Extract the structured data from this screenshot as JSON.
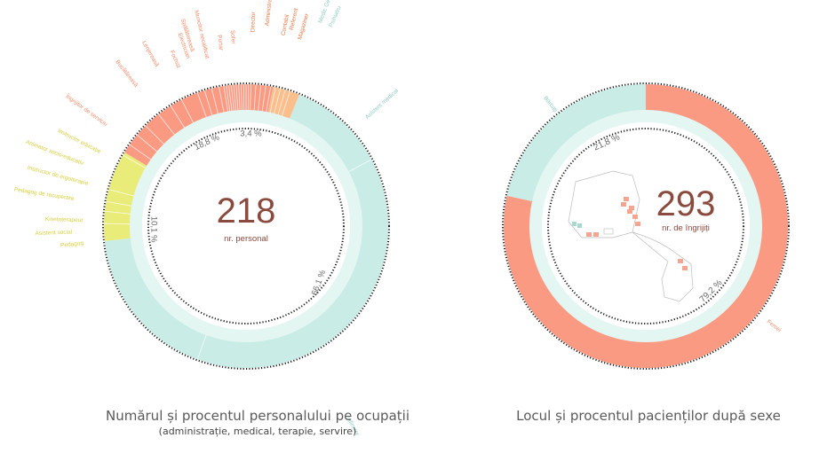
{
  "colors": {
    "admin": "#fb9a83",
    "admin_light": "#fbbf8e",
    "medical": "#c9ece6",
    "therapy": "#eaec7a",
    "therapy_text": "#d9cf3f",
    "admin_text": "#f08c6c",
    "number": "#8a4a3e",
    "dots": "#1a1a1a"
  },
  "chart_data": [
    {
      "type": "pie",
      "title": "Numărul și procentul personalului pe ocupații",
      "subtitle": "(administrație, medical, terapie, servire)",
      "center_value": "218",
      "center_label": "nr. personal",
      "groups": [
        {
          "name": "medical",
          "percent_label": "66,1 %",
          "value": 66.1
        },
        {
          "name": "therapy",
          "percent_label": "10,1 %",
          "value": 10.1
        },
        {
          "name": "servire",
          "percent_label": "18,8 %",
          "value": 18.8
        },
        {
          "name": "administrație",
          "percent_label": "3,4 %",
          "value": 3.4
        }
      ],
      "categories": [
        "Asistent medical",
        "Infirmier",
        "Pedagog",
        "Asistent social",
        "Kinetoterapeut",
        "Pedagog de recuperare",
        "Instructor de ergoterapie",
        "Animator socio-educativ",
        "Instructor educație",
        "Îngrijitor de serviciu",
        "Bucătăreasă",
        "Lenjereasă",
        "Fochist",
        "Electrician",
        "Spălătoreasă",
        "Muncitor necalificat",
        "Portar",
        "Șofer",
        "Director",
        "Administrator",
        "Contabil",
        "Referent",
        "Magaziner",
        "Medic Generalist",
        "Psihiatru"
      ],
      "labels": {
        "medical": [
          "Asistent medical",
          "Infirmier",
          "Medic Generalist",
          "Psihiatru"
        ],
        "therapy": [
          "Instructor educație",
          "Animator socio-educativ",
          "Instructor de ergoterapie",
          "Pedagog de recuperare",
          "Kinetoterapeut",
          "Asistent social",
          "Pedagog"
        ],
        "servire": [
          "Îngrijitor de serviciu",
          "Bucătăreasă",
          "Lenjereasă",
          "Fochist",
          "Electrician",
          "Spălătoreasă",
          "Muncitor necalificat",
          "Portar",
          "Șofer"
        ],
        "administrație": [
          "Director",
          "Administrator",
          "Contabil",
          "Referent",
          "Magaziner"
        ]
      }
    },
    {
      "type": "pie",
      "title": "Locul și procentul pacienților după sexe",
      "center_value": "293",
      "center_label": "nr. de îngrijiți",
      "categories": [
        "Bărbați",
        "Femei"
      ],
      "values": [
        21.8,
        79.2
      ],
      "percent_labels": [
        "21,8 %",
        "79,2 %"
      ]
    }
  ]
}
